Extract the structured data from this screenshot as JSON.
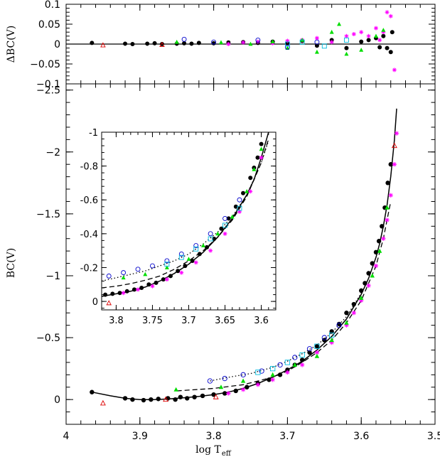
{
  "chart_data": [
    {
      "panel": "residuals",
      "type": "scatter",
      "ylabel": "ΔBC(V)",
      "xlim": [
        4.0,
        3.5
      ],
      "ylim": [
        -0.1,
        0.1
      ],
      "xticks": [
        4.0,
        3.9,
        3.8,
        3.7,
        3.6,
        3.5
      ],
      "yticks": [
        0.1,
        0.05,
        0,
        -0.05,
        -0.1
      ],
      "yticklabels": [
        "0.1",
        "0.05",
        "0",
        "−0.05",
        "−0.1"
      ],
      "zero_line": true,
      "colors": {
        "black": "#000000",
        "magenta": "#ff00ff",
        "green": "#00dd00",
        "blue": "#0000cc",
        "cyan": "#00bbdd",
        "red": "#dd0000"
      },
      "series": [
        {
          "marker": "filled-circle",
          "color": "#000000",
          "x": [
            3.965,
            3.92,
            3.91,
            3.89,
            3.88,
            3.87,
            3.85,
            3.84,
            3.83,
            3.82,
            3.8,
            3.78,
            3.76,
            3.74,
            3.72,
            3.7,
            3.68,
            3.66,
            3.64,
            3.62,
            3.6,
            3.59,
            3.58,
            3.575,
            3.57,
            3.565,
            3.56,
            3.558
          ],
          "y": [
            0.003,
            0.001,
            0.0,
            0.001,
            0.002,
            0.0,
            0.001,
            0.002,
            0.001,
            0.003,
            0.002,
            0.004,
            0.005,
            0.003,
            0.006,
            0.002,
            0.008,
            -0.004,
            0.01,
            -0.01,
            0.006,
            0.01,
            0.015,
            -0.008,
            0.02,
            -0.01,
            -0.02,
            0.03
          ]
        },
        {
          "marker": "asterisk",
          "color": "#ff00ff",
          "x": [
            3.78,
            3.76,
            3.74,
            3.72,
            3.7,
            3.68,
            3.66,
            3.64,
            3.62,
            3.61,
            3.6,
            3.59,
            3.58,
            3.575,
            3.57,
            3.565,
            3.56,
            3.555
          ],
          "y": [
            0.0,
            0.004,
            0.006,
            0.002,
            0.008,
            0.01,
            0.015,
            0.005,
            0.02,
            0.025,
            0.03,
            0.02,
            0.04,
            0.01,
            0.03,
            0.08,
            0.07,
            -0.065
          ]
        },
        {
          "marker": "filled-triangle",
          "color": "#00dd00",
          "x": [
            3.85,
            3.79,
            3.75,
            3.72,
            3.7,
            3.68,
            3.66,
            3.64,
            3.63,
            3.62,
            3.6,
            3.58,
            3.57
          ],
          "y": [
            0.005,
            0.004,
            0.0,
            0.006,
            -0.01,
            0.01,
            -0.02,
            0.03,
            0.05,
            -0.025,
            -0.015,
            0.02,
            0.035
          ]
        },
        {
          "marker": "open-circle",
          "color": "#0000cc",
          "x": [
            3.84,
            3.8,
            3.74,
            3.7,
            3.66
          ],
          "y": [
            0.012,
            0.005,
            0.01,
            -0.008,
            0.005
          ]
        },
        {
          "marker": "open-square",
          "color": "#00bbdd",
          "x": [
            3.7,
            3.68,
            3.65,
            3.62
          ],
          "y": [
            0.0,
            0.005,
            -0.005,
            0.01
          ]
        },
        {
          "marker": "open-triangle",
          "color": "#dd0000",
          "x": [
            3.95,
            3.87
          ],
          "y": [
            -0.003,
            -0.002
          ]
        }
      ]
    },
    {
      "panel": "main",
      "type": "scatter",
      "xlabel_main": "log T",
      "xlabel_sub": "eff",
      "ylabel": "BC(V)",
      "xlim": [
        4.0,
        3.5
      ],
      "ylim": [
        0.2,
        -2.55
      ],
      "xticks": [
        4.0,
        3.9,
        3.8,
        3.7,
        3.6,
        3.5
      ],
      "xticklabels": [
        "4",
        "3.9",
        "3.8",
        "3.7",
        "3.6",
        "3.5"
      ],
      "yticks": [
        0,
        -0.5,
        -1,
        -1.5,
        -2,
        -2.5
      ],
      "yticklabels": [
        "0",
        "−0.5",
        "−1",
        "−1.5",
        "−2",
        "−2.5"
      ],
      "series": [
        {
          "marker": "filled-circle",
          "color": "#000000",
          "x": [
            3.965,
            3.92,
            3.91,
            3.895,
            3.885,
            3.875,
            3.862,
            3.852,
            3.845,
            3.836,
            3.826,
            3.815,
            3.8,
            3.785,
            3.77,
            3.755,
            3.74,
            3.725,
            3.71,
            3.7,
            3.69,
            3.68,
            3.67,
            3.66,
            3.65,
            3.64,
            3.63,
            3.62,
            3.61,
            3.6,
            3.595,
            3.59,
            3.585,
            3.58,
            3.576,
            3.572,
            3.568,
            3.564,
            3.56
          ],
          "y": [
            -0.06,
            -0.01,
            0.0,
            0.005,
            0.0,
            -0.005,
            -0.01,
            0.0,
            -0.02,
            -0.01,
            -0.02,
            -0.03,
            -0.04,
            -0.05,
            -0.07,
            -0.1,
            -0.13,
            -0.16,
            -0.2,
            -0.24,
            -0.28,
            -0.32,
            -0.38,
            -0.43,
            -0.48,
            -0.55,
            -0.61,
            -0.7,
            -0.77,
            -0.88,
            -0.94,
            -1.02,
            -1.1,
            -1.19,
            -1.28,
            -1.4,
            -1.55,
            -1.75,
            -1.9
          ]
        },
        {
          "marker": "asterisk",
          "color": "#ff00ff",
          "x": [
            3.78,
            3.76,
            3.74,
            3.72,
            3.7,
            3.68,
            3.66,
            3.64,
            3.62,
            3.61,
            3.6,
            3.59,
            3.58,
            3.57,
            3.565,
            3.56,
            3.555,
            3.552
          ],
          "y": [
            -0.05,
            -0.08,
            -0.12,
            -0.16,
            -0.22,
            -0.28,
            -0.38,
            -0.46,
            -0.6,
            -0.7,
            -0.8,
            -0.92,
            -1.08,
            -1.3,
            -1.45,
            -1.65,
            -1.9,
            -2.15
          ]
        },
        {
          "marker": "filled-triangle",
          "color": "#00dd00",
          "x": [
            3.851,
            3.79,
            3.76,
            3.72,
            3.69,
            3.66,
            3.64,
            3.62,
            3.6,
            3.585,
            3.575,
            3.565
          ],
          "y": [
            -0.08,
            -0.1,
            -0.15,
            -0.2,
            -0.28,
            -0.35,
            -0.48,
            -0.62,
            -0.82,
            -1.0,
            -1.2,
            -1.55
          ]
        },
        {
          "marker": "open-circle",
          "color": "#0000cc",
          "x": [
            3.805,
            3.785,
            3.76,
            3.735,
            3.71,
            3.69,
            3.67,
            3.65,
            3.63
          ],
          "y": [
            -0.15,
            -0.17,
            -0.2,
            -0.23,
            -0.28,
            -0.34,
            -0.41,
            -0.5,
            -0.6
          ]
        },
        {
          "marker": "open-square",
          "color": "#00bbdd",
          "x": [
            3.74,
            3.72,
            3.7,
            3.68,
            3.66,
            3.64
          ],
          "y": [
            -0.22,
            -0.25,
            -0.3,
            -0.36,
            -0.43,
            -0.52
          ]
        },
        {
          "marker": "open-triangle",
          "color": "#dd0000",
          "x": [
            3.95,
            3.865,
            3.797,
            3.555
          ],
          "y": [
            0.03,
            0.0,
            -0.02,
            -2.05
          ]
        }
      ],
      "curves": [
        {
          "style": "solid",
          "x": [
            3.965,
            3.94,
            3.92,
            3.9,
            3.88,
            3.86,
            3.84,
            3.82,
            3.8,
            3.78,
            3.76,
            3.74,
            3.72,
            3.7,
            3.68,
            3.66,
            3.64,
            3.62,
            3.6,
            3.59,
            3.58,
            3.575,
            3.57,
            3.565,
            3.56,
            3.555,
            3.552
          ],
          "y": [
            -0.06,
            -0.03,
            -0.01,
            0.0,
            0.0,
            -0.005,
            -0.015,
            -0.025,
            -0.04,
            -0.06,
            -0.09,
            -0.13,
            -0.18,
            -0.24,
            -0.31,
            -0.4,
            -0.51,
            -0.65,
            -0.85,
            -0.98,
            -1.15,
            -1.26,
            -1.4,
            -1.57,
            -1.8,
            -2.1,
            -2.35
          ]
        },
        {
          "style": "dashed",
          "x": [
            3.85,
            3.8,
            3.76,
            3.72,
            3.7,
            3.68,
            3.66,
            3.64,
            3.62,
            3.6,
            3.58,
            3.57,
            3.56
          ],
          "y": [
            -0.07,
            -0.09,
            -0.12,
            -0.18,
            -0.23,
            -0.3,
            -0.38,
            -0.48,
            -0.62,
            -0.8,
            -1.08,
            -1.3,
            -1.6
          ]
        },
        {
          "style": "dotted",
          "x": [
            3.805,
            3.78,
            3.75,
            3.72,
            3.7,
            3.68,
            3.66,
            3.64,
            3.62,
            3.6
          ],
          "y": [
            -0.15,
            -0.18,
            -0.21,
            -0.26,
            -0.31,
            -0.37,
            -0.44,
            -0.54,
            -0.67,
            -0.86
          ]
        }
      ]
    },
    {
      "panel": "inset",
      "type": "scatter",
      "xlim": [
        3.82,
        3.58
      ],
      "ylim": [
        0.05,
        -1.0
      ],
      "xticks": [
        3.8,
        3.75,
        3.7,
        3.65,
        3.6
      ],
      "xticklabels": [
        "3.8",
        "3.75",
        "3.7",
        "3.65",
        "3.6"
      ],
      "yticks": [
        0,
        -0.2,
        -0.4,
        -0.6,
        -0.8,
        -1
      ],
      "yticklabels": [
        "0",
        "-0.2",
        "-0.4",
        "-0.6",
        "-0.8",
        "-1"
      ],
      "series": [
        {
          "marker": "filled-circle",
          "color": "#000000",
          "x": [
            3.815,
            3.805,
            3.795,
            3.785,
            3.775,
            3.765,
            3.755,
            3.745,
            3.735,
            3.725,
            3.715,
            3.705,
            3.695,
            3.685,
            3.675,
            3.665,
            3.655,
            3.645,
            3.635,
            3.625,
            3.615,
            3.61,
            3.605,
            3.6
          ],
          "y": [
            -0.04,
            -0.045,
            -0.05,
            -0.06,
            -0.07,
            -0.08,
            -0.1,
            -0.11,
            -0.13,
            -0.15,
            -0.18,
            -0.21,
            -0.24,
            -0.28,
            -0.32,
            -0.37,
            -0.43,
            -0.49,
            -0.56,
            -0.64,
            -0.73,
            -0.79,
            -0.85,
            -0.93
          ]
        },
        {
          "marker": "asterisk",
          "color": "#ff00ff",
          "x": [
            3.79,
            3.77,
            3.75,
            3.73,
            3.71,
            3.69,
            3.67,
            3.65,
            3.63,
            3.615,
            3.6
          ],
          "y": [
            -0.05,
            -0.07,
            -0.09,
            -0.13,
            -0.17,
            -0.23,
            -0.3,
            -0.4,
            -0.53,
            -0.65,
            -0.85
          ]
        },
        {
          "marker": "filled-triangle",
          "color": "#00dd00",
          "x": [
            3.79,
            3.76,
            3.73,
            3.7,
            3.68,
            3.66,
            3.64,
            3.62,
            3.61,
            3.6
          ],
          "y": [
            -0.14,
            -0.16,
            -0.2,
            -0.25,
            -0.33,
            -0.4,
            -0.5,
            -0.65,
            -0.78,
            -0.9
          ]
        },
        {
          "marker": "open-circle",
          "color": "#0000cc",
          "x": [
            3.81,
            3.79,
            3.77,
            3.75,
            3.73,
            3.71,
            3.69,
            3.67,
            3.65,
            3.63
          ],
          "y": [
            -0.15,
            -0.17,
            -0.19,
            -0.21,
            -0.24,
            -0.28,
            -0.33,
            -0.4,
            -0.49,
            -0.6
          ]
        },
        {
          "marker": "open-square",
          "color": "#00bbdd",
          "x": [
            3.73,
            3.71,
            3.69,
            3.67,
            3.65,
            3.63
          ],
          "y": [
            -0.22,
            -0.26,
            -0.31,
            -0.37,
            -0.45,
            -0.55
          ]
        },
        {
          "marker": "open-triangle",
          "color": "#dd0000",
          "x": [
            3.81
          ],
          "y": [
            0.01
          ]
        }
      ],
      "curves": [
        {
          "style": "solid",
          "x": [
            3.82,
            3.8,
            3.78,
            3.76,
            3.74,
            3.72,
            3.7,
            3.68,
            3.66,
            3.64,
            3.62,
            3.61,
            3.6,
            3.59
          ],
          "y": [
            -0.03,
            -0.045,
            -0.06,
            -0.085,
            -0.12,
            -0.165,
            -0.22,
            -0.29,
            -0.38,
            -0.49,
            -0.63,
            -0.72,
            -0.85,
            -1.0
          ]
        },
        {
          "style": "dashed",
          "x": [
            3.82,
            3.8,
            3.78,
            3.76,
            3.74,
            3.72,
            3.7,
            3.68,
            3.66,
            3.64,
            3.62,
            3.6,
            3.59
          ],
          "y": [
            -0.08,
            -0.09,
            -0.105,
            -0.125,
            -0.15,
            -0.19,
            -0.24,
            -0.3,
            -0.38,
            -0.48,
            -0.62,
            -0.82,
            -0.96
          ]
        },
        {
          "style": "dotted",
          "x": [
            3.82,
            3.8,
            3.78,
            3.76,
            3.74,
            3.72,
            3.7,
            3.68,
            3.66,
            3.64,
            3.62,
            3.6,
            3.59
          ],
          "y": [
            -0.12,
            -0.14,
            -0.16,
            -0.18,
            -0.21,
            -0.24,
            -0.28,
            -0.34,
            -0.41,
            -0.5,
            -0.63,
            -0.82,
            -0.95
          ]
        }
      ]
    }
  ]
}
